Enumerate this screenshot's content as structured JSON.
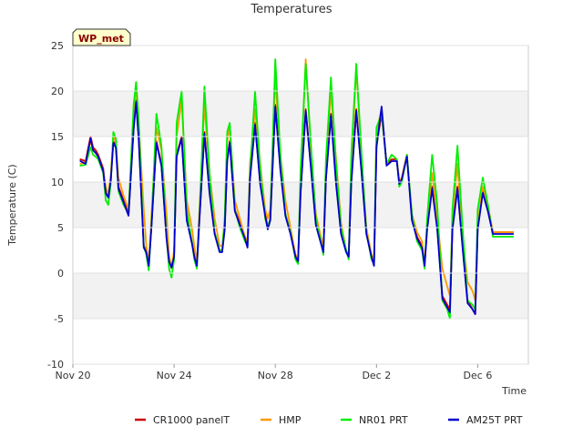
{
  "chart_data": {
    "type": "line",
    "title": "Temperatures",
    "badge": "WP_met",
    "xlabel": "Time",
    "ylabel": "Temperature (C)",
    "xlim": [
      0,
      18
    ],
    "ylim": [
      -10,
      25
    ],
    "yticks": [
      -10,
      -5,
      0,
      5,
      10,
      15,
      20,
      25
    ],
    "xticks": [
      {
        "value": 0,
        "label": "Nov 20"
      },
      {
        "value": 4,
        "label": "Nov 24"
      },
      {
        "value": 8,
        "label": "Nov 28"
      },
      {
        "value": 12,
        "label": "Dec 2"
      },
      {
        "value": 16,
        "label": "Dec 6"
      }
    ],
    "x": [
      0.3,
      0.5,
      0.7,
      0.8,
      0.9,
      1.0,
      1.2,
      1.3,
      1.4,
      1.5,
      1.6,
      1.7,
      1.8,
      2.0,
      2.2,
      2.4,
      2.5,
      2.6,
      2.8,
      2.9,
      3.0,
      3.1,
      3.3,
      3.5,
      3.7,
      3.8,
      3.9,
      4.0,
      4.1,
      4.3,
      4.5,
      4.7,
      4.8,
      4.9,
      5.0,
      5.2,
      5.4,
      5.6,
      5.8,
      5.9,
      6.0,
      6.1,
      6.2,
      6.4,
      6.6,
      6.8,
      6.9,
      7.0,
      7.2,
      7.4,
      7.6,
      7.7,
      7.8,
      8.0,
      8.2,
      8.4,
      8.6,
      8.8,
      8.9,
      9.0,
      9.2,
      9.4,
      9.6,
      9.8,
      9.9,
      10.0,
      10.2,
      10.4,
      10.6,
      10.8,
      10.9,
      11.0,
      11.2,
      11.4,
      11.6,
      11.8,
      11.9,
      12.0,
      12.2,
      12.4,
      12.6,
      12.8,
      12.9,
      13.0,
      13.2,
      13.4,
      13.6,
      13.8,
      13.9,
      14.0,
      14.2,
      14.4,
      14.6,
      14.8,
      14.9,
      15.0,
      15.2,
      15.4,
      15.6,
      15.8,
      15.9,
      16.0,
      16.2,
      16.4,
      16.6,
      16.8,
      16.9,
      17.0,
      17.2,
      17.4
    ],
    "series": [
      {
        "name": "CR1000 panelT",
        "color": "#cc0000",
        "values": [
          12.5,
          12.3,
          15.0,
          13.8,
          13.5,
          13.0,
          11.5,
          9.0,
          8.5,
          10.5,
          14.5,
          14.0,
          9.5,
          8.0,
          6.5,
          16.0,
          19.0,
          15.0,
          3.0,
          2.5,
          1.0,
          5.0,
          14.5,
          12.0,
          4.0,
          1.5,
          0.8,
          2.0,
          13.0,
          15.0,
          6.0,
          3.5,
          2.0,
          1.0,
          6.0,
          15.5,
          9.0,
          4.5,
          2.5,
          2.5,
          5.0,
          12.5,
          14.5,
          7.0,
          5.5,
          4.0,
          3.0,
          10.5,
          16.5,
          10.0,
          6.5,
          5.0,
          6.0,
          18.5,
          11.5,
          6.5,
          4.5,
          2.0,
          1.5,
          9.0,
          18.0,
          12.0,
          5.5,
          3.5,
          2.5,
          10.5,
          17.5,
          10.0,
          4.5,
          2.5,
          2.0,
          10.0,
          18.0,
          11.5,
          4.5,
          2.0,
          1.0,
          14.0,
          17.5,
          12.0,
          12.5,
          12.5,
          10.0,
          10.5,
          13.0,
          6.0,
          4.0,
          3.0,
          1.0,
          5.0,
          9.5,
          5.0,
          -2.5,
          -3.5,
          -4.0,
          5.0,
          9.5,
          3.0,
          -3.0,
          -4.0,
          -4.5,
          5.0,
          9.0,
          7.0,
          4.5,
          4.5,
          4.5,
          4.5,
          4.5,
          4.5
        ]
      },
      {
        "name": "HMP",
        "color": "#ff9900",
        "values": [
          12.0,
          12.2,
          14.5,
          13.5,
          13.2,
          12.8,
          11.2,
          9.5,
          8.5,
          11.0,
          15.0,
          14.5,
          10.5,
          8.5,
          7.0,
          17.5,
          20.5,
          16.5,
          7.0,
          3.0,
          1.0,
          6.0,
          16.0,
          13.5,
          6.5,
          2.0,
          0.5,
          2.5,
          15.0,
          19.0,
          8.0,
          5.0,
          3.0,
          1.0,
          7.0,
          18.5,
          11.0,
          6.0,
          3.0,
          3.0,
          6.0,
          14.5,
          16.0,
          8.0,
          6.0,
          4.0,
          3.5,
          12.0,
          18.0,
          12.0,
          7.0,
          6.0,
          7.0,
          21.5,
          13.0,
          8.0,
          5.0,
          2.0,
          1.5,
          10.0,
          23.5,
          14.0,
          6.5,
          4.0,
          3.0,
          12.0,
          20.0,
          12.5,
          5.5,
          2.5,
          2.0,
          11.5,
          22.5,
          13.0,
          5.0,
          2.0,
          1.5,
          15.5,
          18.0,
          12.0,
          13.0,
          12.5,
          10.0,
          10.5,
          13.0,
          6.5,
          4.5,
          3.5,
          1.0,
          5.5,
          11.0,
          6.0,
          0.5,
          -1.5,
          -2.5,
          6.0,
          12.0,
          4.0,
          -1.0,
          -2.0,
          -3.0,
          5.5,
          9.5,
          7.5,
          4.5,
          4.5,
          4.5,
          4.5,
          4.5,
          4.5
        ]
      },
      {
        "name": "NR01 PRT",
        "color": "#00ee00",
        "values": [
          11.8,
          11.9,
          13.8,
          13.0,
          12.8,
          12.5,
          11.0,
          8.0,
          7.5,
          10.0,
          15.5,
          14.8,
          9.0,
          7.5,
          6.5,
          18.5,
          21.0,
          17.0,
          3.0,
          2.0,
          0.3,
          5.0,
          17.5,
          14.0,
          4.0,
          0.5,
          -0.5,
          1.5,
          16.5,
          20.0,
          7.0,
          3.5,
          1.5,
          0.5,
          6.0,
          20.5,
          11.0,
          4.5,
          2.5,
          2.5,
          6.0,
          15.5,
          16.5,
          7.0,
          5.0,
          3.5,
          3.0,
          11.0,
          20.0,
          11.5,
          6.0,
          5.0,
          6.0,
          23.5,
          13.0,
          6.5,
          4.5,
          1.5,
          1.0,
          11.5,
          23.0,
          14.5,
          6.0,
          3.5,
          2.0,
          12.5,
          21.5,
          12.0,
          5.0,
          2.5,
          1.5,
          13.0,
          23.0,
          13.5,
          4.5,
          1.5,
          1.0,
          16.0,
          17.5,
          12.0,
          13.0,
          12.5,
          9.5,
          10.0,
          13.0,
          6.5,
          3.5,
          2.5,
          0.5,
          6.0,
          13.0,
          7.5,
          -3.0,
          -4.0,
          -5.0,
          7.0,
          14.0,
          5.0,
          -3.0,
          -3.5,
          -4.0,
          7.0,
          10.5,
          7.5,
          4.0,
          4.0,
          4.0,
          4.0,
          4.0,
          4.0
        ]
      },
      {
        "name": "AM25T PRT",
        "color": "#0000cc",
        "values": [
          12.3,
          12.0,
          14.8,
          13.5,
          13.2,
          12.8,
          11.2,
          8.8,
          8.3,
          10.3,
          14.3,
          13.8,
          9.3,
          7.8,
          6.3,
          15.8,
          18.8,
          14.8,
          2.8,
          2.3,
          0.8,
          4.8,
          14.3,
          11.8,
          3.8,
          1.3,
          0.6,
          1.8,
          12.8,
          14.8,
          5.8,
          3.3,
          1.8,
          0.8,
          5.8,
          15.3,
          8.8,
          4.3,
          2.3,
          2.3,
          4.8,
          12.3,
          14.3,
          6.8,
          5.3,
          3.8,
          2.8,
          10.3,
          16.3,
          9.8,
          6.3,
          4.8,
          5.8,
          18.3,
          11.3,
          6.3,
          4.3,
          1.8,
          1.3,
          8.8,
          17.8,
          11.8,
          5.3,
          3.3,
          2.3,
          10.3,
          17.3,
          9.8,
          4.3,
          2.3,
          1.8,
          9.8,
          17.8,
          11.3,
          4.3,
          1.8,
          0.8,
          13.8,
          18.3,
          11.8,
          12.3,
          12.3,
          9.8,
          10.3,
          12.8,
          5.8,
          3.8,
          2.8,
          0.8,
          4.8,
          9.3,
          4.8,
          -2.8,
          -3.8,
          -4.3,
          4.8,
          9.3,
          2.8,
          -3.3,
          -4.0,
          -4.5,
          4.8,
          8.8,
          6.8,
          4.3,
          4.3,
          4.3,
          4.3,
          4.3,
          4.3
        ]
      }
    ]
  }
}
